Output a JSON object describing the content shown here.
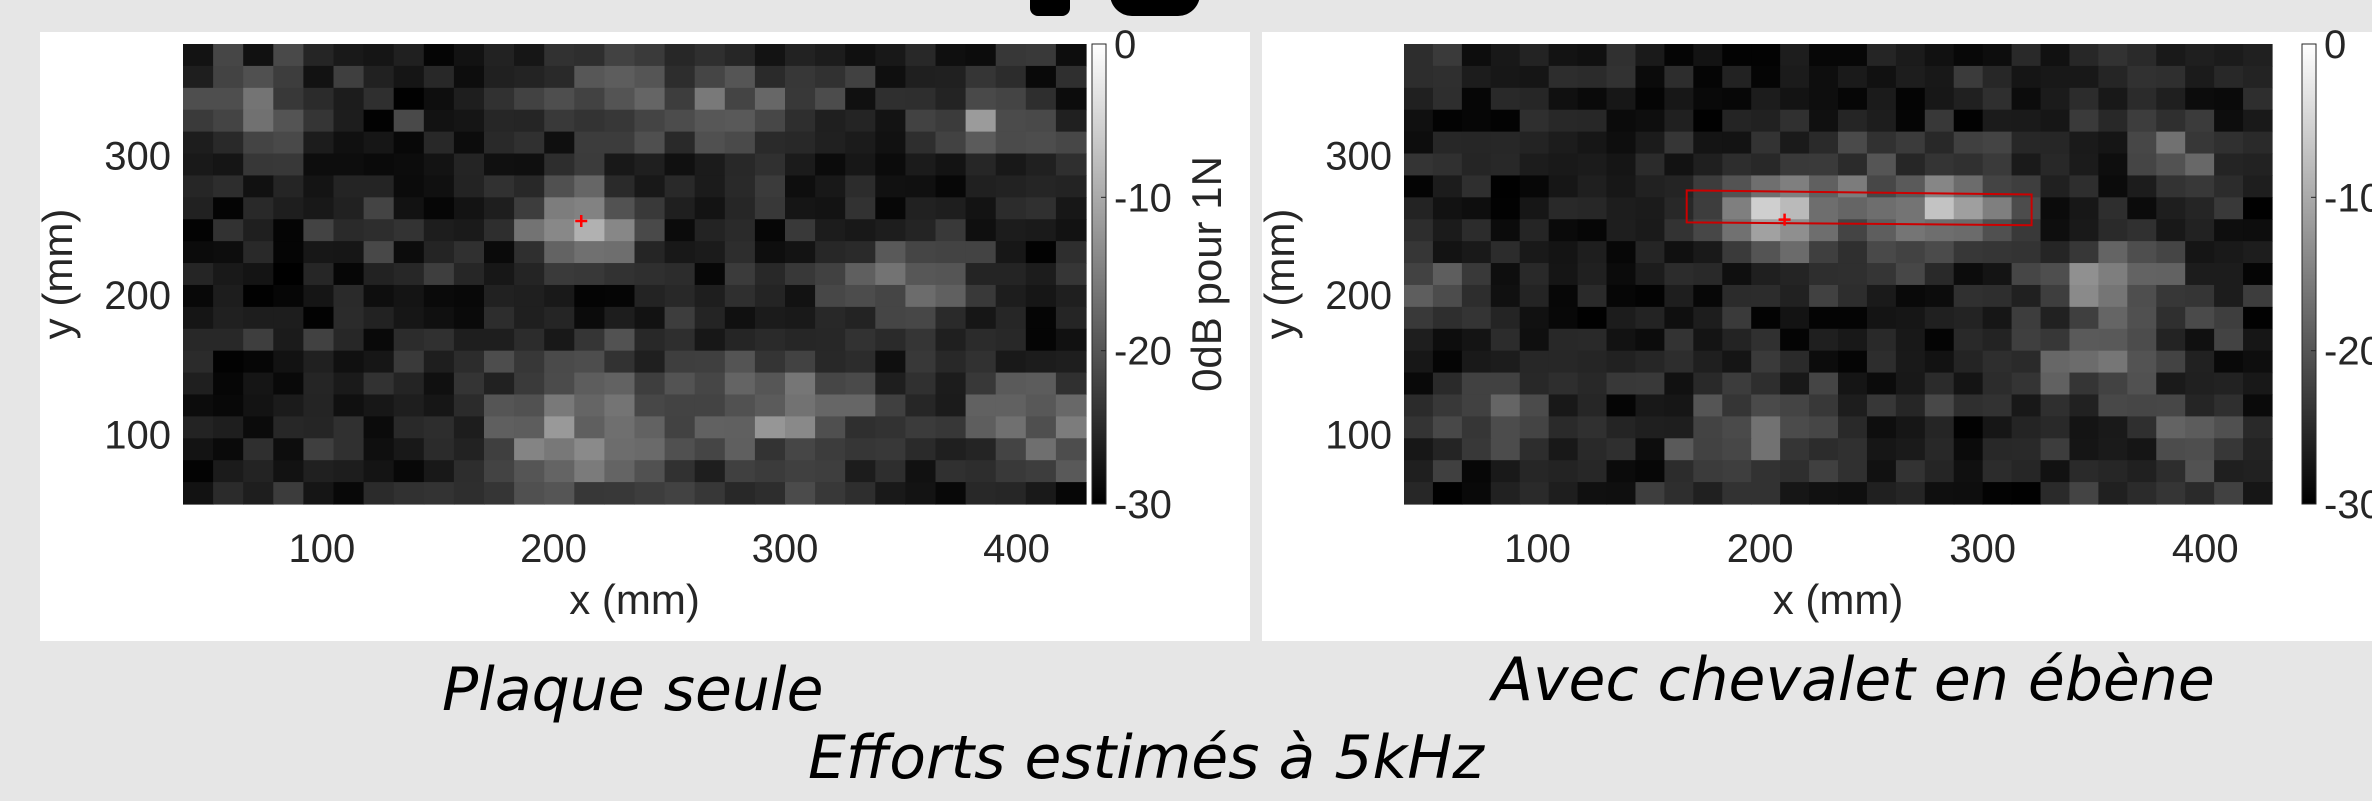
{
  "captions": {
    "left": "Plaque seule",
    "right": "Avec chevalet en ébène",
    "bottom": "Efforts estimés à 5kHz"
  },
  "chart_data": [
    {
      "type": "heatmap",
      "title": "",
      "subtitle": "Plaque seule",
      "xlabel": "x (mm)",
      "ylabel": "y (mm)",
      "xlim": [
        40,
        430
      ],
      "ylim": [
        50,
        380
      ],
      "xticks": [
        100,
        200,
        300,
        400
      ],
      "yticks": [
        100,
        200,
        300
      ],
      "grid": [
        30,
        21
      ],
      "colorbar": {
        "label": "0dB pour 1N",
        "ticks": [
          0,
          -10,
          -20,
          -30
        ],
        "range": [
          -30,
          0
        ],
        "colormap": "gray"
      },
      "marker": {
        "x": 212,
        "y": 253,
        "color": "#ff0000"
      },
      "hotspots": [
        {
          "x": 212,
          "y": 253,
          "r": 25,
          "a": 0.65
        },
        {
          "x": 215,
          "y": 100,
          "r": 48,
          "a": 0.42
        },
        {
          "x": 300,
          "y": 115,
          "r": 38,
          "a": 0.38
        },
        {
          "x": 410,
          "y": 110,
          "r": 30,
          "a": 0.42
        },
        {
          "x": 350,
          "y": 210,
          "r": 32,
          "a": 0.35
        },
        {
          "x": 75,
          "y": 330,
          "r": 25,
          "a": 0.38
        },
        {
          "x": 285,
          "y": 330,
          "r": 30,
          "a": 0.32
        },
        {
          "x": 385,
          "y": 325,
          "r": 25,
          "a": 0.35
        },
        {
          "x": 225,
          "y": 345,
          "r": 30,
          "a": 0.28
        }
      ]
    },
    {
      "type": "heatmap",
      "title": "",
      "subtitle": "Avec chevalet en ébène",
      "xlabel": "x (mm)",
      "ylabel": "y (mm)",
      "xlim": [
        40,
        430
      ],
      "ylim": [
        50,
        380
      ],
      "xticks": [
        100,
        200,
        300,
        400
      ],
      "yticks": [
        100,
        200,
        300
      ],
      "grid": [
        30,
        21
      ],
      "colorbar": {
        "label": "",
        "ticks": [
          0,
          -10,
          -20,
          -30
        ],
        "range": [
          -30,
          0
        ],
        "colormap": "gray"
      },
      "marker": {
        "x": 211,
        "y": 254,
        "color": "#ff0000"
      },
      "bridge_outline": {
        "x": [
          167,
          322,
          322,
          167
        ],
        "y": [
          275,
          272,
          250,
          252
        ],
        "color": "#cc0000"
      },
      "hotspots": [
        {
          "x": 200,
          "y": 258,
          "r": 25,
          "a": 0.55
        },
        {
          "x": 288,
          "y": 258,
          "r": 25,
          "a": 0.55
        },
        {
          "x": 245,
          "y": 265,
          "r": 38,
          "a": 0.25
        },
        {
          "x": 50,
          "y": 205,
          "r": 20,
          "a": 0.42
        },
        {
          "x": 360,
          "y": 210,
          "r": 28,
          "a": 0.45
        },
        {
          "x": 385,
          "y": 305,
          "r": 22,
          "a": 0.35
        },
        {
          "x": 350,
          "y": 150,
          "r": 35,
          "a": 0.28
        },
        {
          "x": 205,
          "y": 100,
          "r": 40,
          "a": 0.25
        },
        {
          "x": 80,
          "y": 110,
          "r": 25,
          "a": 0.22
        },
        {
          "x": 395,
          "y": 100,
          "r": 22,
          "a": 0.28
        }
      ]
    }
  ]
}
